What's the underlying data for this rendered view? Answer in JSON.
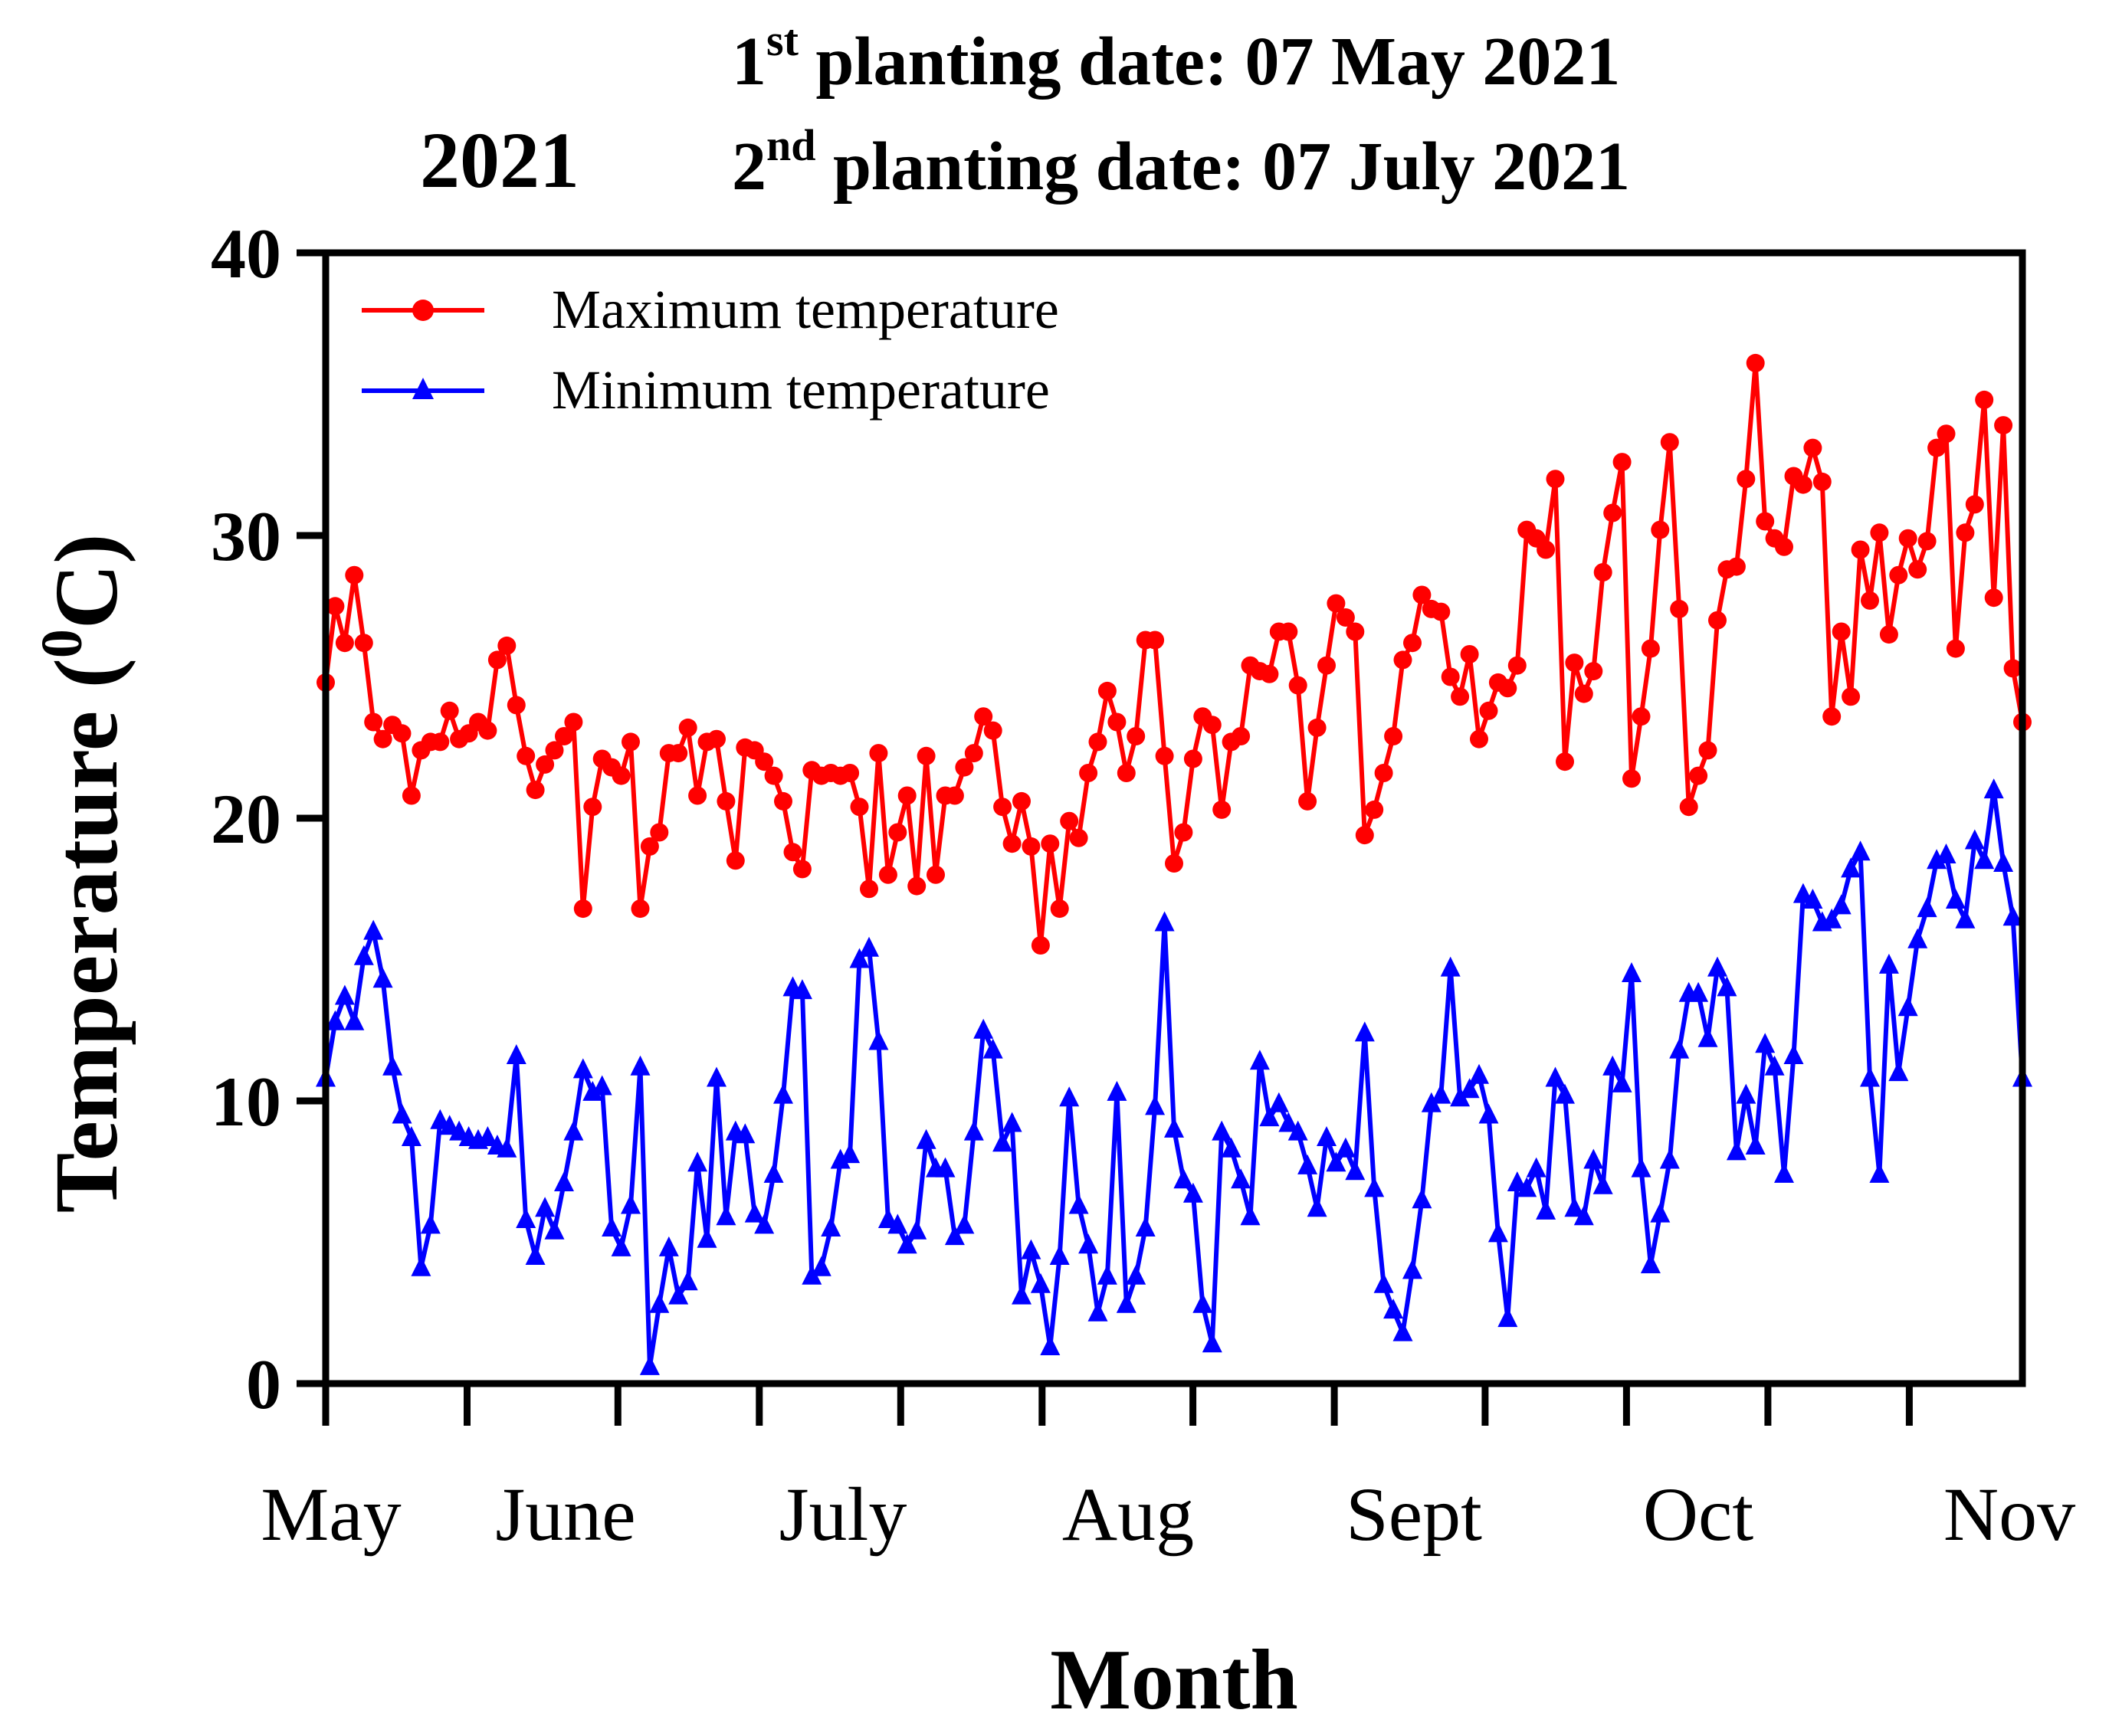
{
  "header": {
    "year": "2021",
    "line1": {
      "num": "1",
      "sup": "st",
      "text": " planting date: 07 May 2021"
    },
    "line2": {
      "num": "2",
      "sup": "nd",
      "text": " planting date: 07 July 2021"
    }
  },
  "chart_data": {
    "type": "line",
    "xlabel": "Month",
    "ylabel": {
      "main": "Temperature (",
      "sup": "0",
      "tail": "C)"
    },
    "ylim": [
      0,
      40
    ],
    "yticks": [
      0,
      10,
      20,
      30,
      40
    ],
    "x_range_days": [
      0,
      180
    ],
    "month_ticks": [
      {
        "label": "May",
        "day": 0
      },
      {
        "label": "June",
        "day": 31
      },
      {
        "label": "July",
        "day": 61
      },
      {
        "label": "Aug",
        "day": 92
      },
      {
        "label": "Sept",
        "day": 123
      },
      {
        "label": "Oct",
        "day": 153
      },
      {
        "label": "Nov",
        "day": 184
      }
    ],
    "grid": false,
    "legend_position": "top-left",
    "series": [
      {
        "name": "Maximum temperature",
        "color": "#ff0000",
        "marker": "circle",
        "values": [
          24.8,
          27.5,
          26.2,
          28.6,
          26.2,
          23.4,
          22.8,
          23.3,
          23.0,
          20.8,
          22.4,
          22.7,
          22.7,
          23.8,
          22.8,
          23.0,
          23.4,
          23.1,
          25.6,
          26.1,
          24.0,
          22.2,
          21.0,
          21.9,
          22.4,
          22.9,
          23.4,
          16.8,
          20.4,
          22.1,
          21.8,
          21.5,
          22.7,
          16.8,
          19.0,
          19.5,
          22.3,
          22.3,
          23.2,
          20.8,
          22.7,
          22.8,
          20.6,
          18.5,
          22.5,
          22.4,
          22.0,
          21.5,
          20.6,
          18.8,
          18.2,
          21.7,
          21.5,
          21.6,
          21.5,
          21.6,
          20.4,
          17.5,
          22.3,
          18.0,
          19.5,
          20.8,
          17.6,
          22.2,
          18.0,
          20.8,
          20.8,
          21.8,
          22.3,
          23.6,
          23.1,
          20.4,
          19.1,
          20.6,
          19.0,
          15.5,
          19.1,
          16.8,
          19.9,
          19.3,
          21.6,
          22.7,
          24.5,
          23.4,
          21.6,
          22.9,
          26.3,
          26.3,
          22.2,
          18.4,
          19.5,
          22.1,
          23.6,
          23.3,
          20.3,
          22.7,
          22.9,
          25.4,
          25.2,
          25.1,
          26.6,
          26.6,
          24.7,
          20.6,
          23.2,
          25.4,
          27.6,
          27.1,
          26.6,
          19.4,
          20.3,
          21.6,
          22.9,
          25.6,
          26.2,
          27.9,
          27.4,
          27.3,
          25.0,
          24.3,
          25.8,
          22.8,
          23.8,
          24.8,
          24.6,
          25.4,
          30.2,
          29.9,
          29.5,
          32.0,
          22.0,
          25.5,
          24.4,
          25.2,
          28.7,
          30.8,
          32.6,
          21.4,
          23.6,
          26.0,
          30.2,
          33.3,
          27.4,
          20.4,
          21.5,
          22.4,
          27.0,
          28.8,
          28.9,
          32.0,
          36.1,
          30.5,
          29.9,
          29.6,
          32.1,
          31.8,
          33.1,
          31.9,
          23.6,
          26.6,
          24.3,
          29.5,
          27.7,
          30.1,
          26.5,
          28.6,
          29.9,
          28.8,
          29.8,
          33.1,
          33.6,
          26.0,
          30.1,
          31.1,
          34.8,
          27.8,
          33.9,
          25.3,
          23.4
        ]
      },
      {
        "name": "Minimum temperature",
        "color": "#0000ff",
        "marker": "triangle",
        "values": [
          10.8,
          12.8,
          13.7,
          12.8,
          15.1,
          16.0,
          14.3,
          11.2,
          9.5,
          8.7,
          4.1,
          5.6,
          9.3,
          9.1,
          8.9,
          8.7,
          8.6,
          8.7,
          8.4,
          8.3,
          11.6,
          5.8,
          4.5,
          6.2,
          5.4,
          7.1,
          8.9,
          11.1,
          10.3,
          10.5,
          5.5,
          4.8,
          6.3,
          11.2,
          0.6,
          2.8,
          4.8,
          3.1,
          3.6,
          7.8,
          5.1,
          10.8,
          5.9,
          8.9,
          8.8,
          6.0,
          5.6,
          7.4,
          10.2,
          14.0,
          13.9,
          3.8,
          4.1,
          5.5,
          7.9,
          8.1,
          15.0,
          15.4,
          12.1,
          5.8,
          5.6,
          4.9,
          5.4,
          8.6,
          7.6,
          7.6,
          5.2,
          5.6,
          8.9,
          12.5,
          11.8,
          8.5,
          9.2,
          3.1,
          4.7,
          3.5,
          1.3,
          4.5,
          10.1,
          6.3,
          4.9,
          2.5,
          3.8,
          10.3,
          2.8,
          3.8,
          5.5,
          9.8,
          16.3,
          9.0,
          7.2,
          6.7,
          2.8,
          1.4,
          8.9,
          8.3,
          7.2,
          5.9,
          11.4,
          9.4,
          9.9,
          9.2,
          8.9,
          7.7,
          6.2,
          8.7,
          7.8,
          8.3,
          7.5,
          12.4,
          6.9,
          3.5,
          2.6,
          1.8,
          4.0,
          6.5,
          9.9,
          10.2,
          14.7,
          10.1,
          10.4,
          10.9,
          9.5,
          5.3,
          2.3,
          7.1,
          6.9,
          7.6,
          6.1,
          10.8,
          10.2,
          6.2,
          5.9,
          7.9,
          7.0,
          11.2,
          10.6,
          14.5,
          7.6,
          4.2,
          6.0,
          7.9,
          11.8,
          13.8,
          13.8,
          12.2,
          14.7,
          14.0,
          8.2,
          10.2,
          8.4,
          12.0,
          11.2,
          7.4,
          11.6,
          17.3,
          17.1,
          16.3,
          16.4,
          16.9,
          18.2,
          18.8,
          10.8,
          7.4,
          14.8,
          11.0,
          13.3,
          15.7,
          16.8,
          18.5,
          18.7,
          17.1,
          16.4,
          19.2,
          18.5,
          21.0,
          18.4,
          16.5,
          10.8
        ]
      }
    ]
  }
}
